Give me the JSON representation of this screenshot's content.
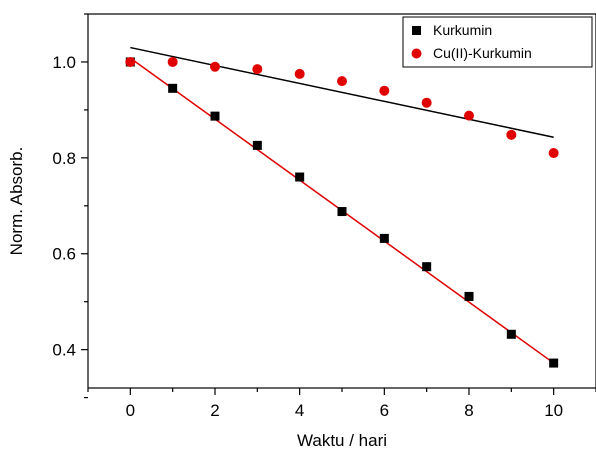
{
  "chart_data": {
    "type": "scatter",
    "xlabel": "Waktu / hari",
    "ylabel": "Norm. Absorb.",
    "xlim": [
      -1,
      11
    ],
    "ylim": [
      0.32,
      1.1
    ],
    "xticks": [
      0,
      2,
      4,
      6,
      8,
      10
    ],
    "yticks": [
      0.4,
      0.6,
      0.8,
      1.0
    ],
    "xtick_labels": [
      "0",
      "2",
      "4",
      "6",
      "8",
      "10"
    ],
    "ytick_labels": [
      "0.4",
      "0.6",
      "0.8",
      "1.0"
    ],
    "grid": false,
    "legend_position": "top-right",
    "series": [
      {
        "name": "Kurkumin",
        "marker": "square",
        "color": "#000000",
        "x": [
          0,
          1,
          2,
          3,
          4,
          5,
          6,
          7,
          8,
          9,
          10
        ],
        "y": [
          1.0,
          0.945,
          0.887,
          0.826,
          0.76,
          0.688,
          0.632,
          0.573,
          0.511,
          0.432,
          0.372
        ],
        "fit": {
          "x": [
            0,
            10
          ],
          "y": [
            1.008,
            0.372
          ],
          "color": "#e00000"
        }
      },
      {
        "name": "Cu(II)-Kurkumin",
        "marker": "circle",
        "color": "#e00000",
        "x": [
          0,
          1,
          2,
          3,
          4,
          5,
          6,
          7,
          8,
          9,
          10
        ],
        "y": [
          1.0,
          1.0,
          0.99,
          0.985,
          0.975,
          0.96,
          0.94,
          0.915,
          0.888,
          0.848,
          0.81
        ],
        "fit": {
          "x": [
            0,
            10
          ],
          "y": [
            1.03,
            0.843
          ],
          "color": "#000000"
        }
      }
    ]
  }
}
